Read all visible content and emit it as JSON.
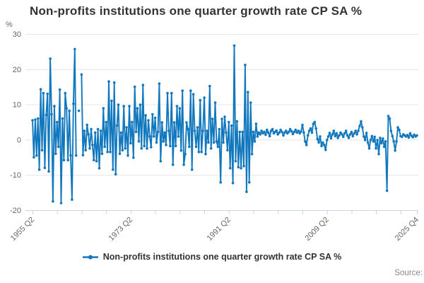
{
  "source": {
    "label": "Source:"
  },
  "chart_data": {
    "type": "line",
    "title": "Non-profits institutions one quarter growth rate CP SA %",
    "unit": "%",
    "frequency": "quarterly",
    "x_start": "1955 Q2",
    "x_end": "2025 Q4",
    "ylim": [
      -20,
      30
    ],
    "y_ticks": [
      30,
      20,
      10,
      0,
      -10,
      -20
    ],
    "grid": "horizontal-only",
    "legend_position": "bottom",
    "x_tick_indices": [
      0,
      18,
      36,
      54,
      72,
      90,
      108,
      126,
      144,
      162,
      180,
      198,
      216,
      234,
      252,
      270,
      282
    ],
    "x_tick_labels": [
      {
        "index": 0,
        "label": "1955 Q2"
      },
      {
        "index": 72,
        "label": "1973 Q2"
      },
      {
        "index": 144,
        "label": "1991 Q2"
      },
      {
        "index": 216,
        "label": "2009 Q2"
      },
      {
        "index": 282,
        "label": "2025 Q4"
      }
    ],
    "colors": {
      "series": "#1278be",
      "grid": "#e6e6e6",
      "axis_line": "#ccd6eb",
      "axis_label": "#666666",
      "title": "#333333",
      "legend_text": "#333333"
    },
    "series": [
      {
        "name": "Non-profits institutions one quarter growth rate CP SA %",
        "values": [
          5.5,
          -5.0,
          5.7,
          -4.5,
          6.0,
          -8.5,
          14.3,
          -3.0,
          13.2,
          -8.0,
          7.0,
          13.0,
          -9.0,
          23.0,
          7.2,
          -17.5,
          9.5,
          -4.0,
          5.0,
          -2.0,
          14.2,
          -18.0,
          6.0,
          -5.8,
          13.2,
          8.9,
          -5.8,
          8.2,
          -4.5,
          -17.0,
          10.2,
          25.7,
          -4.5,
          null,
          8.2,
          null,
          18.5,
          -4.4,
          2.5,
          -3.0,
          4.2,
          1.5,
          -2.5,
          3.0,
          -1.5,
          -5.8,
          2.0,
          -6.1,
          3.0,
          -8.1,
          2.5,
          -4.0,
          8.9,
          -2.0,
          5.0,
          -3.5,
          16.5,
          -3.5,
          11.0,
          -8.5,
          16.2,
          -9.8,
          4.0,
          9.9,
          -4.0,
          2.0,
          -3.0,
          9.5,
          -2.5,
          3.5,
          -4.5,
          9.5,
          -1.0,
          5.0,
          -5.1,
          15.0,
          2.2,
          8.9,
          -0.5,
          9.9,
          -2.5,
          15.5,
          -1.8,
          6.9,
          -2.5,
          5.5,
          0.9,
          -2.1,
          7.2,
          0.9,
          6.2,
          -0.8,
          2.2,
          15.9,
          -6.1,
          4.9,
          -0.5,
          2.0,
          -1.5,
          13.2,
          2.5,
          -1.8,
          13.2,
          -7.1,
          4.9,
          -1.8,
          9.5,
          0.9,
          8.9,
          -3.1,
          13.9,
          -7.1,
          -4.1,
          4.9,
          3.0,
          -2.0,
          13.9,
          -8.5,
          12.9,
          2.5,
          -2.0,
          3.5,
          -3.5,
          11.2,
          -3.5,
          2.5,
          11.9,
          -4.1,
          2.5,
          -0.8,
          15.2,
          -2.5,
          5.9,
          -0.8,
          10.5,
          -0.5,
          -2.0,
          3.0,
          -12.1,
          5.9,
          -0.8,
          6.5,
          2.0,
          -3.0,
          5.0,
          -8.1,
          4.0,
          -12.3,
          26.7,
          -6.1,
          5.2,
          -7.8,
          2.2,
          -8.1,
          2.2,
          -7.5,
          21.2,
          -14.8,
          13.5,
          -12.1,
          10.5,
          -4.1,
          2.2,
          -0.5,
          4.5,
          0.9,
          2.0,
          1.5,
          2.5,
          1.8,
          2.2,
          1.4,
          2.8,
          2.0,
          1.0,
          2.5,
          3.0,
          1.8,
          2.2,
          2.6,
          1.5,
          2.0,
          2.8,
          2.2,
          1.2,
          2.0,
          2.5,
          1.8,
          2.2,
          3.0,
          2.4,
          1.6,
          2.2,
          2.8,
          2.0,
          2.5,
          1.8,
          2.3,
          4.2,
          2.0,
          -0.5,
          -1.5,
          1.2,
          2.5,
          3.2,
          2.0,
          4.5,
          5.0,
          3.2,
          0.2,
          -0.8,
          0.9,
          -1.8,
          -0.8,
          -1.5,
          -2.9,
          -0.1,
          0.9,
          1.9,
          0.4,
          1.5,
          2.5,
          1.0,
          1.8,
          0.5,
          1.2,
          2.0,
          1.5,
          0.8,
          1.8,
          2.5,
          1.2,
          0.5,
          1.5,
          2.2,
          1.0,
          1.8,
          2.5,
          1.5,
          2.5,
          3.9,
          5.2,
          3.5,
          0.9,
          -0.1,
          1.9,
          -0.8,
          -2.5,
          -0.1,
          1.0,
          -0.5,
          0.8,
          -2.5,
          -0.1,
          -4.1,
          0.5,
          -1.0,
          0.3,
          -2.0,
          -0.5,
          -14.5,
          6.7,
          6.0,
          2.5,
          1.0,
          -0.5,
          -3.1,
          -0.5,
          3.5,
          2.8,
          1.0,
          0.8,
          1.5,
          1.2,
          0.9,
          1.3,
          0.6,
          1.8,
          1.1,
          0.7,
          1.4,
          0.9,
          1.2
        ]
      }
    ]
  }
}
